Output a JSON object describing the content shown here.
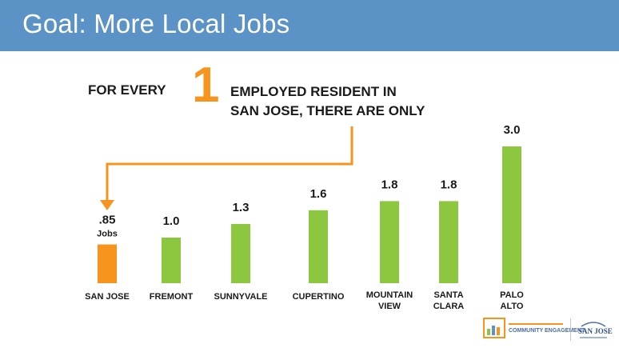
{
  "header": {
    "title": "Goal: More Local Jobs"
  },
  "headline": {
    "prefix": "FOR EVERY",
    "number": "1",
    "suffix_line1": "EMPLOYED RESIDENT IN",
    "suffix_line2": "SAN JOSE, THERE ARE ONLY"
  },
  "chart_data": {
    "type": "bar",
    "categories": [
      [
        "SAN JOSE"
      ],
      [
        "FREMONT"
      ],
      [
        "SUNNYVALE"
      ],
      [
        "CUPERTINO"
      ],
      [
        "MOUNTAIN",
        "VIEW"
      ],
      [
        "SANTA",
        "CLARA"
      ],
      [
        "PALO",
        "ALTO"
      ]
    ],
    "values": [
      0.85,
      1.0,
      1.3,
      1.6,
      1.8,
      1.8,
      3.0
    ],
    "value_labels": [
      ".85",
      "1.0",
      "1.3",
      "1.6",
      "1.8",
      "1.8",
      "3.0"
    ],
    "first_unit_label": "Jobs",
    "title": "",
    "xlabel": "",
    "ylabel": "",
    "ylim": [
      0,
      3.0
    ],
    "colors": {
      "highlight": "#f7941d",
      "bar": "#8dc63f",
      "arrow": "#f7941d"
    },
    "highlight_index": 0,
    "grid": false
  },
  "footer": {
    "logo1_text": "COMMUNITY ENGAGEMENT",
    "logo2_text": "SAN JOSE"
  }
}
